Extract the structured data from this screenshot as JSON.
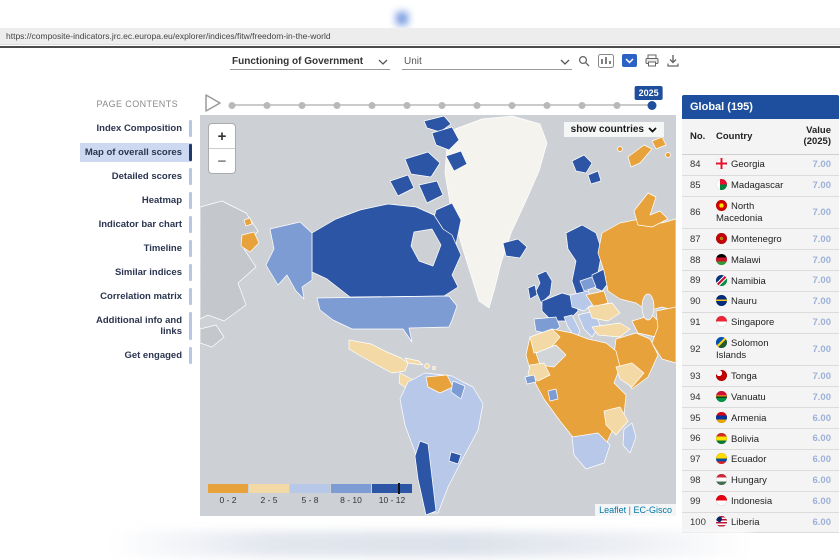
{
  "browser": {
    "url": "https://composite-indicators.jrc.ec.europa.eu/explorer/indices/fitw/freedom-in-the-world"
  },
  "controls": {
    "index_select": "Functioning of Government",
    "unit_select": "Unit"
  },
  "timeline": {
    "year_badge": "2025",
    "ticks": 13
  },
  "sidebar": {
    "title": "PAGE CONTENTS",
    "active_index": 1,
    "items": [
      "Index Composition",
      "Map of overall scores",
      "Detailed scores",
      "Heatmap",
      "Indicator bar chart",
      "Timeline",
      "Similar indices",
      "Correlation matrix",
      "Additional info and links",
      "Get engaged"
    ]
  },
  "map": {
    "show_countries": "show countries",
    "zoom_in": "+",
    "zoom_out": "−",
    "attribution": {
      "leaflet": "Leaflet",
      "separator": " | ",
      "provider": "EC-Gisco"
    },
    "legend": [
      {
        "label": "0 - 2",
        "color": "#E8A23C"
      },
      {
        "label": "2 - 5",
        "color": "#F3D9A5"
      },
      {
        "label": "5 - 8",
        "color": "#B7C8E9"
      },
      {
        "label": "8 - 10",
        "color": "#7E9CD4"
      },
      {
        "label": "10 - 12",
        "color": "#2C55A5"
      }
    ],
    "regions": {
      "ocean": "#CDD1D5",
      "world_copy": "#C4C8CC",
      "greenland": "#F4F3EE",
      "canada": "#2C55A5",
      "hudson_bay": "#CDD1D5",
      "alaska": "#7E9CD4",
      "chukotka": "#E8A23C",
      "usa": "#7E9CD4",
      "mexico": "#F3D9A5",
      "central_america": "#F3D9A5",
      "costa_rica": "#2C55A5",
      "caribbean": "#F3D9A5",
      "south_america": "#B7C8E9",
      "venezuela": "#E8A23C",
      "guyana": "#7E9CD4",
      "chile": "#2C55A5",
      "uruguay": "#2C55A5",
      "iceland": "#2C55A5",
      "uk": "#2C55A5",
      "ireland": "#2C55A5",
      "scandinavia": "#2C55A5",
      "svalbard": "#2C55A5",
      "novaya_zemlya": "#E8A23C",
      "europe_west": "#2C55A5",
      "iberia": "#7E9CD4",
      "italy": "#B7C8E9",
      "central_europe": "#B7C8E9",
      "baltics": "#7E9CD4",
      "balkans": "#B7C8E9",
      "belarus": "#E8A23C",
      "ukraine": "#F3D9A5",
      "russia": "#E8A23C",
      "turkey": "#F3D9A5",
      "middle_east": "#E8A23C",
      "caspian": "#CDD1D5",
      "africa": "#E8A23C",
      "north_africa_tan": "#F3D9A5",
      "algeria_gray": "#D2D5D8",
      "west_africa_tan": "#F3D9A5",
      "east_africa_tan": "#F3D9A5",
      "senegal": "#7E9CD4",
      "ghana": "#7E9CD4",
      "southern_africa": "#B7C8E9",
      "madagascar": "#B7C8E9"
    }
  },
  "ranking": {
    "title": "Global (195)",
    "columns": {
      "no": "No.",
      "country": "Country",
      "value_line1": "Value",
      "value_line2": "(2025)"
    },
    "rows": [
      {
        "no": "84",
        "country": "Georgia",
        "value": "7.00",
        "flag": "linear-gradient(0deg,transparent 40%,#e8112d 40% 60%,transparent 60%),linear-gradient(90deg,transparent 40%,#e8112d 40% 60%,transparent 60%) #ffffff"
      },
      {
        "no": "85",
        "country": "Madagascar",
        "value": "7.00",
        "flag": "linear-gradient(90deg,#ffffff 0 38%,transparent 38%),linear-gradient(180deg,#e8112d 0 50%,#00843d 50%)"
      },
      {
        "no": "86",
        "country": "North Macedonia",
        "value": "7.00",
        "flag": "radial-gradient(circle,#ffe600 0 28%,#d20000 29%)"
      },
      {
        "no": "87",
        "country": "Montenegro",
        "value": "7.00",
        "flag": "radial-gradient(circle,#b8860b 0 22%,#c40308 23%)"
      },
      {
        "no": "88",
        "country": "Malawi",
        "value": "7.00",
        "flag": "linear-gradient(180deg,#000000 0 34%,#ce1126 34% 66%,#339e35 66%)"
      },
      {
        "no": "89",
        "country": "Namibia",
        "value": "7.00",
        "flag": "linear-gradient(135deg,#003580 0 38%,#ffffff 38% 44%,#d21034 44% 58%,#ffffff 58% 64%,#009543 64%)"
      },
      {
        "no": "90",
        "country": "Nauru",
        "value": "7.00",
        "flag": "linear-gradient(180deg,#002b7f 0 42%,#ffc61e 42% 56%,#002b7f 56%)"
      },
      {
        "no": "91",
        "country": "Singapore",
        "value": "7.00",
        "flag": "linear-gradient(180deg,#ee2536 0 50%,#ffffff 50%)"
      },
      {
        "no": "92",
        "country": "Solomon Islands",
        "value": "7.00",
        "flag": "linear-gradient(135deg,#0051ba 0 42%,#fcd116 42% 56%,#215b33 56%)"
      },
      {
        "no": "93",
        "country": "Tonga",
        "value": "7.00",
        "flag": "radial-gradient(circle at 28% 28%,#ffffff 0 26%,#c10000 27%)"
      },
      {
        "no": "94",
        "country": "Vanuatu",
        "value": "7.00",
        "flag": "linear-gradient(180deg,#d21034 0 42%,#fdce12 42% 50%,#000000 50% 58%,#009543 58%)"
      },
      {
        "no": "95",
        "country": "Armenia",
        "value": "6.00",
        "flag": "linear-gradient(180deg,#d90012 0 34%,#0033a0 34% 66%,#f2a800 66%)"
      },
      {
        "no": "96",
        "country": "Bolivia",
        "value": "6.00",
        "flag": "linear-gradient(180deg,#d52b1e 0 34%,#f9e300 34% 66%,#007934 66%)"
      },
      {
        "no": "97",
        "country": "Ecuador",
        "value": "6.00",
        "flag": "linear-gradient(180deg,#ffdd00 0 50%,#034ea2 50% 75%,#ed1c24 75%)"
      },
      {
        "no": "98",
        "country": "Hungary",
        "value": "6.00",
        "flag": "linear-gradient(180deg,#ce2939 0 34%,#ffffff 34% 66%,#477050 66%)"
      },
      {
        "no": "99",
        "country": "Indonesia",
        "value": "6.00",
        "flag": "linear-gradient(180deg,#e70011 0 50%,#ffffff 50%)"
      },
      {
        "no": "100",
        "country": "Liberia",
        "value": "6.00",
        "flag": "radial-gradient(circle at 30% 30%,#002868 0 24%,transparent 25%),repeating-linear-gradient(180deg,#bf0a30 0 1.5px,#ffffff 1.5px 3px)"
      }
    ]
  }
}
